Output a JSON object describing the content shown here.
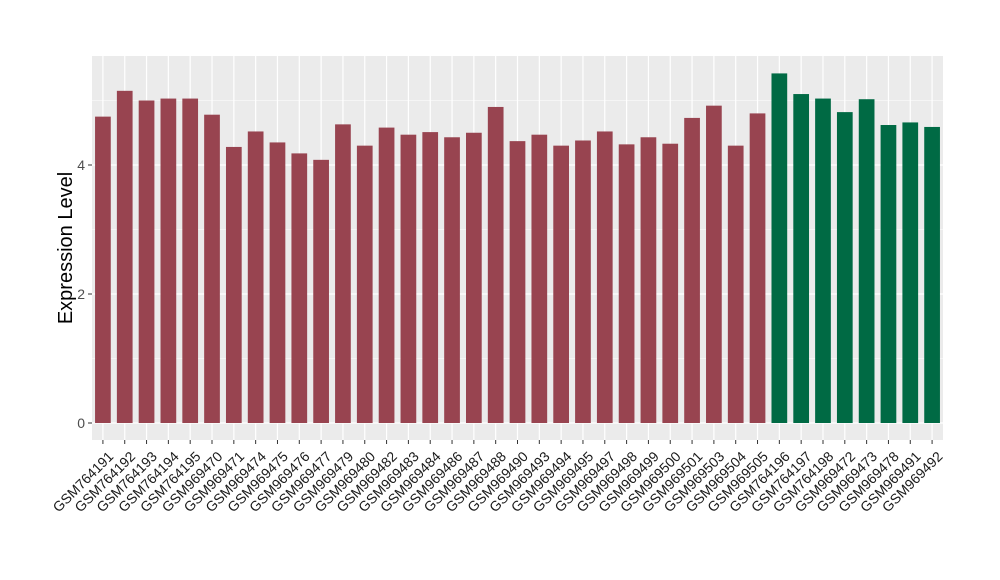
{
  "chart_data": {
    "type": "bar",
    "title": "",
    "xlabel": "",
    "ylabel": "Expression Level",
    "ylim": [
      0,
      5.6
    ],
    "yticks": [
      0,
      2,
      4
    ],
    "grid": true,
    "categories": [
      "GSM764191",
      "GSM764192",
      "GSM764193",
      "GSM764194",
      "GSM764195",
      "GSM969470",
      "GSM969471",
      "GSM969474",
      "GSM969475",
      "GSM969476",
      "GSM969477",
      "GSM969479",
      "GSM969480",
      "GSM969482",
      "GSM969483",
      "GSM969484",
      "GSM969486",
      "GSM969487",
      "GSM969488",
      "GSM969490",
      "GSM969493",
      "GSM969494",
      "GSM969495",
      "GSM969497",
      "GSM969498",
      "GSM969499",
      "GSM969500",
      "GSM969501",
      "GSM969503",
      "GSM969504",
      "GSM969505",
      "GSM764196",
      "GSM764197",
      "GSM764198",
      "GSM969472",
      "GSM969473",
      "GSM969478",
      "GSM969491",
      "GSM969492"
    ],
    "values": [
      4.75,
      5.15,
      5.0,
      5.03,
      5.03,
      4.78,
      4.28,
      4.52,
      4.35,
      4.18,
      4.08,
      4.63,
      4.3,
      4.58,
      4.47,
      4.51,
      4.43,
      4.5,
      4.9,
      4.37,
      4.47,
      4.3,
      4.38,
      4.52,
      4.32,
      4.43,
      4.33,
      4.73,
      4.92,
      4.3,
      4.8,
      5.42,
      5.1,
      5.03,
      4.82,
      5.02,
      4.62,
      4.66,
      4.59
    ],
    "group_colors": [
      "#984450",
      "#984450",
      "#984450",
      "#984450",
      "#984450",
      "#984450",
      "#984450",
      "#984450",
      "#984450",
      "#984450",
      "#984450",
      "#984450",
      "#984450",
      "#984450",
      "#984450",
      "#984450",
      "#984450",
      "#984450",
      "#984450",
      "#984450",
      "#984450",
      "#984450",
      "#984450",
      "#984450",
      "#984450",
      "#984450",
      "#984450",
      "#984450",
      "#984450",
      "#984450",
      "#984450",
      "#006a44",
      "#006a44",
      "#006a44",
      "#006a44",
      "#006a44",
      "#006a44",
      "#006a44",
      "#006a44"
    ],
    "panel_background": "#ebebeb",
    "grid_color": "#ffffff"
  }
}
